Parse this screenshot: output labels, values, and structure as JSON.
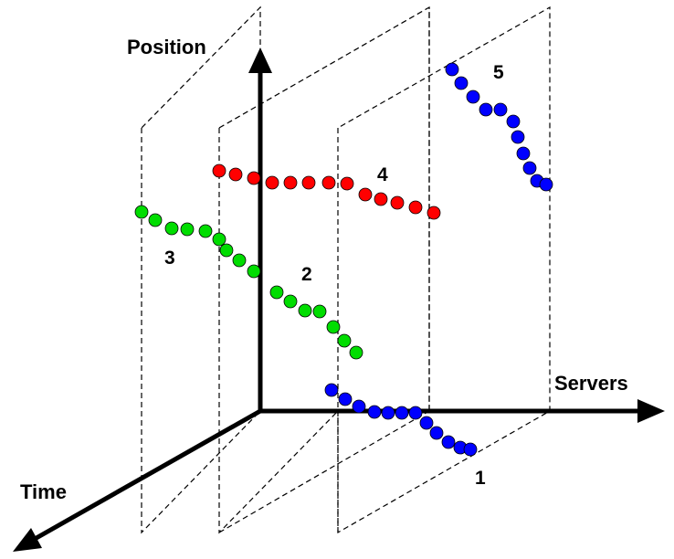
{
  "axes": {
    "position_label": "Position",
    "servers_label": "Servers",
    "time_label": "Time"
  },
  "tracks": [
    {
      "id": "1",
      "label": "1",
      "color": "#0000ff"
    },
    {
      "id": "2",
      "label": "2",
      "color": "#00dd00"
    },
    {
      "id": "3",
      "label": "3",
      "color": "#00dd00"
    },
    {
      "id": "4",
      "label": "4",
      "color": "#ff0000"
    },
    {
      "id": "5",
      "label": "5",
      "color": "#0000ff"
    }
  ]
}
